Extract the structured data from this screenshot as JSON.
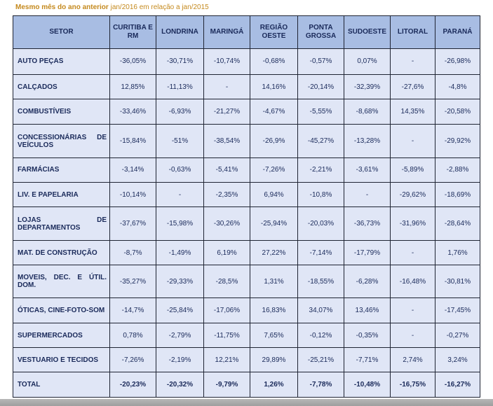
{
  "caption": {
    "bold": "Mesmo mês do ano anterior",
    "rest": " jan/2016 em relação a jan/2015"
  },
  "headers": [
    "SETOR",
    "CURITIBA E RM",
    "LONDRINA",
    "MARINGÁ",
    "REGIÃO OESTE",
    "PONTA GROSSA",
    "SUDOESTE",
    "LITORAL",
    "PARANÁ"
  ],
  "rows": [
    {
      "setor": "AUTO PEÇAS",
      "values": [
        "-36,05%",
        "-30,71%",
        "-10,74%",
        "-0,68%",
        "-0,57%",
        "0,07%",
        "-",
        "-26,98%"
      ]
    },
    {
      "setor": "CALÇADOS",
      "values": [
        "12,85%",
        "-11,13%",
        "-",
        "14,16%",
        "-20,14%",
        "-32,39%",
        "-27,6%",
        "-4,8%"
      ]
    },
    {
      "setor": "COMBUSTÍVEIS",
      "values": [
        "-33,46%",
        "-6,93%",
        "-21,27%",
        "-4,67%",
        "-5,55%",
        "-8,68%",
        "14,35%",
        "-20,58%"
      ]
    },
    {
      "setor": "CONCESSIONÁRIAS DE VEÍCULOS",
      "values": [
        "-15,84%",
        "-51%",
        "-38,54%",
        "-26,9%",
        "-45,27%",
        "-13,28%",
        "-",
        "-29,92%"
      ]
    },
    {
      "setor": "FARMÁCIAS",
      "values": [
        "-3,14%",
        "-0,63%",
        "-5,41%",
        "-7,26%",
        "-2,21%",
        "-3,61%",
        "-5,89%",
        "-2,88%"
      ]
    },
    {
      "setor": "LIV. E PAPELARIA",
      "values": [
        "-10,14%",
        "-",
        "-2,35%",
        "6,94%",
        "-10,8%",
        "-",
        "-29,62%",
        "-18,69%"
      ]
    },
    {
      "setor": "LOJAS DE DEPARTAMENTOS",
      "values": [
        "-37,67%",
        "-15,98%",
        "-30,26%",
        "-25,94%",
        "-20,03%",
        "-36,73%",
        "-31,96%",
        "-28,64%"
      ]
    },
    {
      "setor": "MAT. DE CONSTRUÇÃO",
      "values": [
        "-8,7%",
        "-1,49%",
        "6,19%",
        "27,22%",
        "-7,14%",
        "-17,79%",
        "-",
        "1,76%"
      ]
    },
    {
      "setor": "MOVEIS, DEC. E ÚTIL. DOM.",
      "values": [
        "-35,27%",
        "-29,33%",
        "-28,5%",
        "1,31%",
        "-18,55%",
        "-6,28%",
        "-16,48%",
        "-30,81%"
      ]
    },
    {
      "setor": "ÓTICAS, CINE-FOTO-SOM",
      "values": [
        "-14,7%",
        "-25,84%",
        "-17,06%",
        "16,83%",
        "34,07%",
        "13,46%",
        "-",
        "-17,45%"
      ]
    },
    {
      "setor": "SUPERMERCADOS",
      "values": [
        "0,78%",
        "-2,79%",
        "-11,75%",
        "7,65%",
        "-0,12%",
        "-0,35%",
        "-",
        "-0,27%"
      ]
    },
    {
      "setor": "VESTUARIO E TECIDOS",
      "values": [
        "-7,26%",
        "-2,19%",
        "12,21%",
        "29,89%",
        "-25,21%",
        "-7,71%",
        "2,74%",
        "3,24%"
      ]
    },
    {
      "setor": "TOTAL",
      "values": [
        "-20,23%",
        "-20,32%",
        "-9,79%",
        "1,26%",
        "-7,78%",
        "-10,48%",
        "-16,75%",
        "-16,27%"
      ],
      "total": true
    }
  ],
  "colors": {
    "caption": "#c58a1e",
    "header_bg": "#a8bde3",
    "cell_bg": "#e0e6f6",
    "text": "#1a2a5a",
    "border": "#1f2433"
  }
}
